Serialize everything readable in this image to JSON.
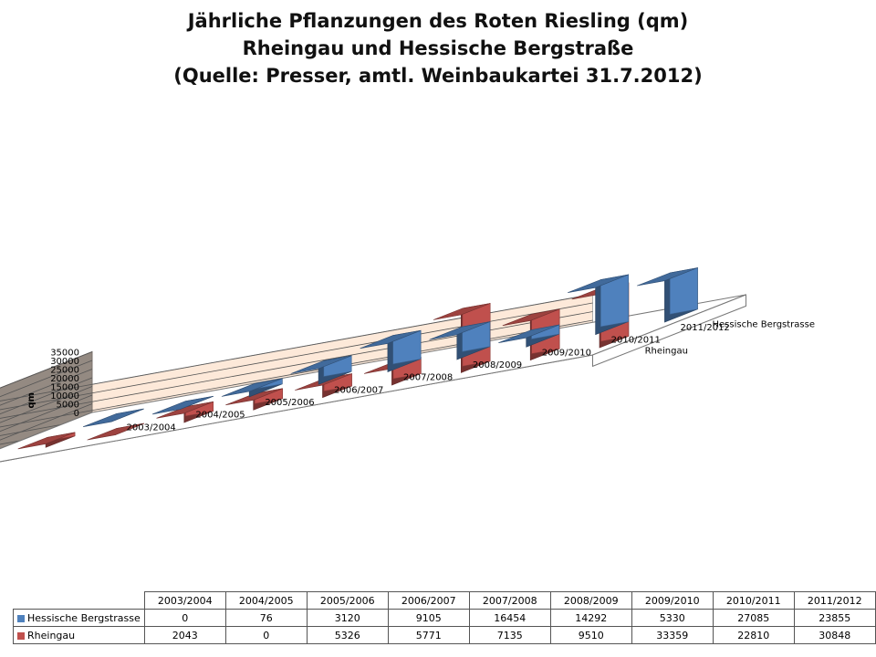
{
  "chart_data": {
    "type": "bar",
    "title_lines": [
      "Jährliche Pflanzungen des Roten Riesling (qm)",
      "Rheingau und Hessische Bergstraße",
      "(Quelle: Presser, amtl. Weinbaukartei 31.7.2012)"
    ],
    "ylabel": "qm",
    "xlabel": "",
    "ylim": [
      0,
      35000
    ],
    "yticks": [
      0,
      5000,
      10000,
      15000,
      20000,
      25000,
      30000,
      35000
    ],
    "categories": [
      "2003/2004",
      "2004/2005",
      "2005/2006",
      "2006/2007",
      "2007/2008",
      "2008/2009",
      "2009/2010",
      "2010/2011",
      "2011/2012"
    ],
    "series": [
      {
        "name": "Hessische Bergstrasse",
        "color": "#4f81bd",
        "values": [
          0,
          76,
          3120,
          9105,
          16454,
          14292,
          5330,
          27085,
          23855
        ]
      },
      {
        "name": "Rheingau",
        "color": "#c0504d",
        "values": [
          2043,
          0,
          5326,
          5771,
          7135,
          9510,
          33359,
          22810,
          30848
        ]
      }
    ]
  }
}
